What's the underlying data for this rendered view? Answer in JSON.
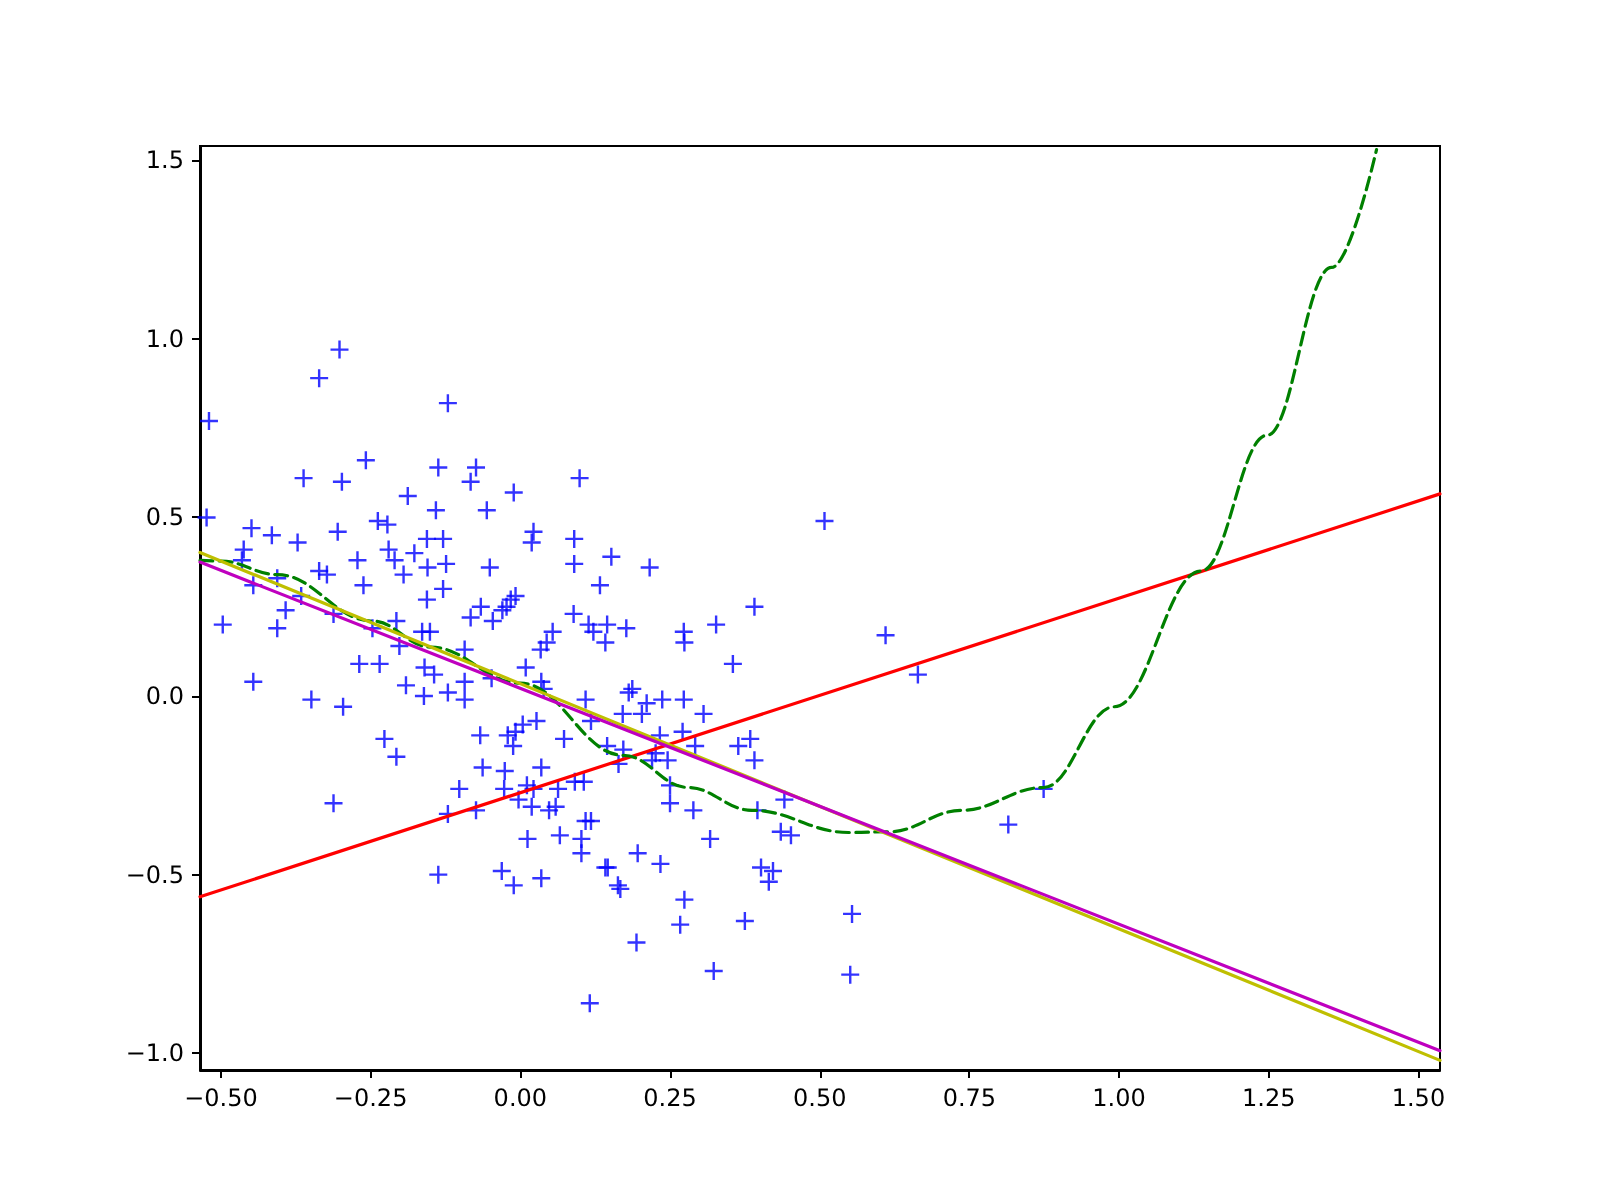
{
  "chart_data": {
    "type": "scatter",
    "xlim": [
      -0.535,
      1.536
    ],
    "ylim": [
      -1.047,
      1.54
    ],
    "xticks": [
      {
        "value": -0.5,
        "label": "−0.50"
      },
      {
        "value": -0.25,
        "label": "−0.25"
      },
      {
        "value": 0,
        "label": "0.00"
      },
      {
        "value": 0.25,
        "label": "0.25"
      },
      {
        "value": 0.5,
        "label": "0.50"
      },
      {
        "value": 0.75,
        "label": "0.75"
      },
      {
        "value": 1,
        "label": "1.00"
      },
      {
        "value": 1.25,
        "label": "1.25"
      },
      {
        "value": 1.5,
        "label": "1.50"
      }
    ],
    "yticks": [
      {
        "value": -1,
        "label": "−1.0"
      },
      {
        "value": -0.5,
        "label": "−0.5"
      },
      {
        "value": 0,
        "label": "0.0"
      },
      {
        "value": 0.5,
        "label": "0.5"
      },
      {
        "value": 1,
        "label": "1.0"
      },
      {
        "value": 1.5,
        "label": "1.5"
      }
    ],
    "grid": false,
    "series": [
      {
        "marker": "cross",
        "color": "#0000ff",
        "x": [
          -0.52,
          -0.524,
          -0.302,
          -0.336,
          -0.121,
          -0.362,
          -0.258,
          -0.298,
          -0.137,
          -0.074,
          -0.083,
          -0.011,
          0.099,
          -0.188,
          -0.056,
          -0.141,
          -0.238,
          -0.222,
          -0.305,
          -0.449,
          -0.415,
          -0.372,
          0.022,
          0.019,
          0.09,
          -0.156,
          -0.129,
          -0.22,
          -0.272,
          -0.21,
          -0.177,
          -0.462,
          -0.465,
          -0.195,
          -0.155,
          -0.124,
          -0.051,
          0.09,
          0.152,
          0.216,
          -0.336,
          -0.323,
          -0.406,
          -0.446,
          -0.262,
          -0.129,
          -0.366,
          -0.156,
          -0.392,
          -0.312,
          -0.066,
          -0.083,
          -0.03,
          -0.016,
          -0.008,
          -0.023,
          -0.046,
          0.133,
          0.391,
          0.089,
          -0.497,
          -0.406,
          -0.247,
          -0.207,
          -0.164,
          -0.151,
          -0.202,
          0.054,
          0.044,
          0.034,
          0.114,
          0.122,
          0.145,
          0.142,
          0.177,
          0.273,
          0.274,
          0.327,
          0.61,
          -0.093,
          -0.269,
          -0.235,
          -0.16,
          -0.144,
          -0.121,
          -0.093,
          -0.093,
          -0.048,
          0.009,
          0.035,
          0.039,
          0.355,
          0.664,
          -0.446,
          -0.349,
          -0.296,
          -0.191,
          -0.161,
          0.109,
          0.118,
          0.181,
          0.187,
          0.211,
          0.203,
          0.171,
          0.237,
          0.273,
          0.306,
          0.271,
          0.292,
          0.233,
          0.246,
          0.22,
          0.226,
          0.384,
          0.364,
          0.391,
          -0.227,
          -0.207,
          -0.312,
          -0.067,
          -0.008,
          -0.021,
          -0.012,
          0.073,
          0.027,
          0.004,
          0.145,
          0.172,
          0.164,
          0.035,
          -0.063,
          -0.026,
          -0.102,
          -0.027,
          0.011,
          0.022,
          -0.003,
          0.019,
          0.063,
          0.059,
          0.048,
          0.091,
          0.106,
          -0.121,
          -0.074,
          0.25,
          0.289,
          0.25,
          0.396,
          0.441,
          0.435,
          0.452,
          0.317,
          0.012,
          0.066,
          0.102,
          0.102,
          0.109,
          0.118,
          0.815,
          0.874,
          0.196,
          0.234,
          0.142,
          0.146,
          0.163,
          0.167,
          -0.137,
          -0.031,
          -0.011,
          0.035,
          0.402,
          0.422,
          0.415,
          0.274,
          0.267,
          0.375,
          0.554,
          0.551,
          0.194,
          0.323,
          0.116,
          0.508
        ],
        "values": [
          0.77,
          0.5,
          0.97,
          0.89,
          0.82,
          0.61,
          0.66,
          0.6,
          0.64,
          0.64,
          0.6,
          0.57,
          0.61,
          0.56,
          0.52,
          0.52,
          0.49,
          0.48,
          0.46,
          0.47,
          0.45,
          0.43,
          0.46,
          0.43,
          0.44,
          0.44,
          0.44,
          0.41,
          0.38,
          0.38,
          0.4,
          0.41,
          0.38,
          0.34,
          0.36,
          0.37,
          0.36,
          0.37,
          0.39,
          0.36,
          0.35,
          0.34,
          0.33,
          0.31,
          0.31,
          0.3,
          0.28,
          0.27,
          0.24,
          0.23,
          0.25,
          0.22,
          0.24,
          0.27,
          0.28,
          0.25,
          0.21,
          0.31,
          0.25,
          0.23,
          0.2,
          0.19,
          0.19,
          0.21,
          0.18,
          0.18,
          0.14,
          0.18,
          0.15,
          0.13,
          0.2,
          0.18,
          0.2,
          0.15,
          0.19,
          0.18,
          0.15,
          0.2,
          0.17,
          0.13,
          0.09,
          0.09,
          0.08,
          0.06,
          0.01,
          0.04,
          -0.01,
          0.05,
          0.08,
          0.04,
          0.02,
          0.09,
          0.06,
          0.04,
          -0.01,
          -0.03,
          0.03,
          0,
          -0.01,
          -0.07,
          0.01,
          0.02,
          -0.02,
          -0.05,
          -0.05,
          -0.01,
          -0.01,
          -0.05,
          -0.1,
          -0.14,
          -0.11,
          -0.18,
          -0.18,
          -0.16,
          -0.12,
          -0.14,
          -0.18,
          -0.12,
          -0.17,
          -0.3,
          -0.11,
          -0.1,
          -0.11,
          -0.14,
          -0.12,
          -0.07,
          -0.08,
          -0.14,
          -0.15,
          -0.19,
          -0.2,
          -0.2,
          -0.21,
          -0.26,
          -0.26,
          -0.25,
          -0.26,
          -0.29,
          -0.31,
          -0.26,
          -0.31,
          -0.32,
          -0.24,
          -0.24,
          -0.33,
          -0.32,
          -0.3,
          -0.32,
          -0.25,
          -0.32,
          -0.29,
          -0.38,
          -0.39,
          -0.4,
          -0.4,
          -0.39,
          -0.4,
          -0.44,
          -0.35,
          -0.35,
          -0.36,
          -0.26,
          -0.44,
          -0.47,
          -0.48,
          -0.48,
          -0.53,
          -0.54,
          -0.5,
          -0.49,
          -0.53,
          -0.51,
          -0.48,
          -0.49,
          -0.52,
          -0.57,
          -0.64,
          -0.63,
          -0.61,
          -0.78,
          -0.69,
          -0.77,
          -0.86,
          0.49
        ]
      },
      {
        "type": "line",
        "marker": "none",
        "line_style": "solid",
        "color": "#ff0000",
        "x": [
          -0.535,
          1.536
        ],
        "values": [
          -0.562,
          0.566
        ]
      },
      {
        "type": "line",
        "marker": "none",
        "line_style": "dashed",
        "color": "#008000",
        "x": [
          -0.535,
          -0.5,
          -0.406,
          -0.247,
          -0.15,
          0,
          0.172,
          0.28,
          0.387,
          0.548,
          0.616,
          0.737,
          0.874,
          0.992,
          1.137,
          1.247,
          1.355,
          1.43
        ],
        "values": [
          0.38,
          0.378,
          0.34,
          0.21,
          0.137,
          0.036,
          -0.166,
          -0.256,
          -0.32,
          -0.382,
          -0.38,
          -0.32,
          -0.256,
          -0.03,
          0.35,
          0.73,
          1.2,
          1.53
        ]
      },
      {
        "type": "line",
        "marker": "none",
        "line_style": "solid",
        "color": "#bfbf00",
        "x": [
          -0.535,
          1.536
        ],
        "values": [
          0.402,
          -1.02
        ]
      },
      {
        "type": "line",
        "marker": "none",
        "line_style": "solid",
        "color": "#bf00bf",
        "x": [
          -0.535,
          1.536
        ],
        "values": [
          0.375,
          -0.993
        ]
      }
    ]
  }
}
